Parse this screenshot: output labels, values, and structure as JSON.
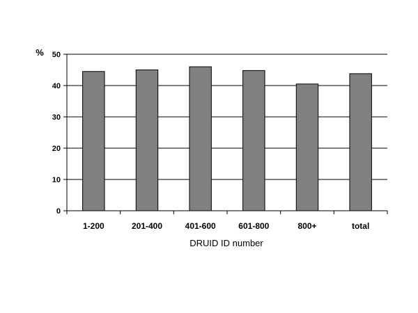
{
  "chart_data": {
    "type": "bar",
    "categories": [
      "1-200",
      "201-400",
      "401-600",
      "601-800",
      "800+",
      "total"
    ],
    "values": [
      44.5,
      45.0,
      46.0,
      44.8,
      40.5,
      43.8
    ],
    "title": "",
    "xlabel": "DRUID ID number",
    "ylabel": "%",
    "ylim": [
      0,
      50
    ],
    "yticks": [
      0,
      10,
      20,
      30,
      40,
      50
    ],
    "grid": true,
    "legend": "none",
    "colors": {
      "bar": "#808080",
      "bar_stroke": "#000000",
      "grid": "#000000",
      "axis": "#000000"
    }
  }
}
